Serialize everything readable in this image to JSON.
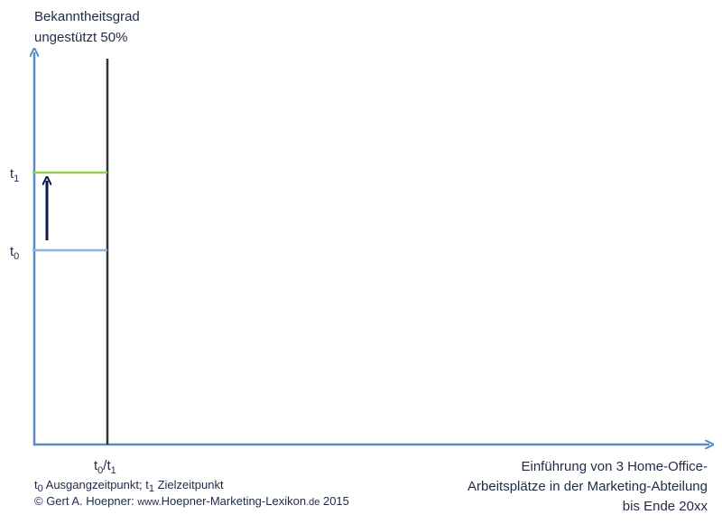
{
  "y_axis_label": [
    "Bekanntheitsgrad",
    "ungestützt 50%"
  ],
  "levels": [
    {
      "base": "t",
      "sub": "1"
    },
    {
      "base": "t",
      "sub": "0"
    }
  ],
  "x_marker": {
    "base0": "t",
    "sub0": "0",
    "sep": "/",
    "base1": "t",
    "sub1": "1"
  },
  "x_axis_label": [
    "Einführung von 3 Home-Office-",
    "Arbeitsplätze in der Marketing-Abteilung",
    "bis Ende 20xx"
  ],
  "legend": {
    "t0": "t",
    "t0_sub": "0",
    "t0_text": " Ausgangzeitpunkt; ",
    "t1": "t",
    "t1_sub": "1",
    "t1_text": " Zielzeitpunkt"
  },
  "copyright": {
    "prefix": "© Gert A. Hoepner: ",
    "www": "www.",
    "site": "Hoepner-Marketing-Lexikon",
    "tld": ".de",
    "year": " 2015"
  }
}
